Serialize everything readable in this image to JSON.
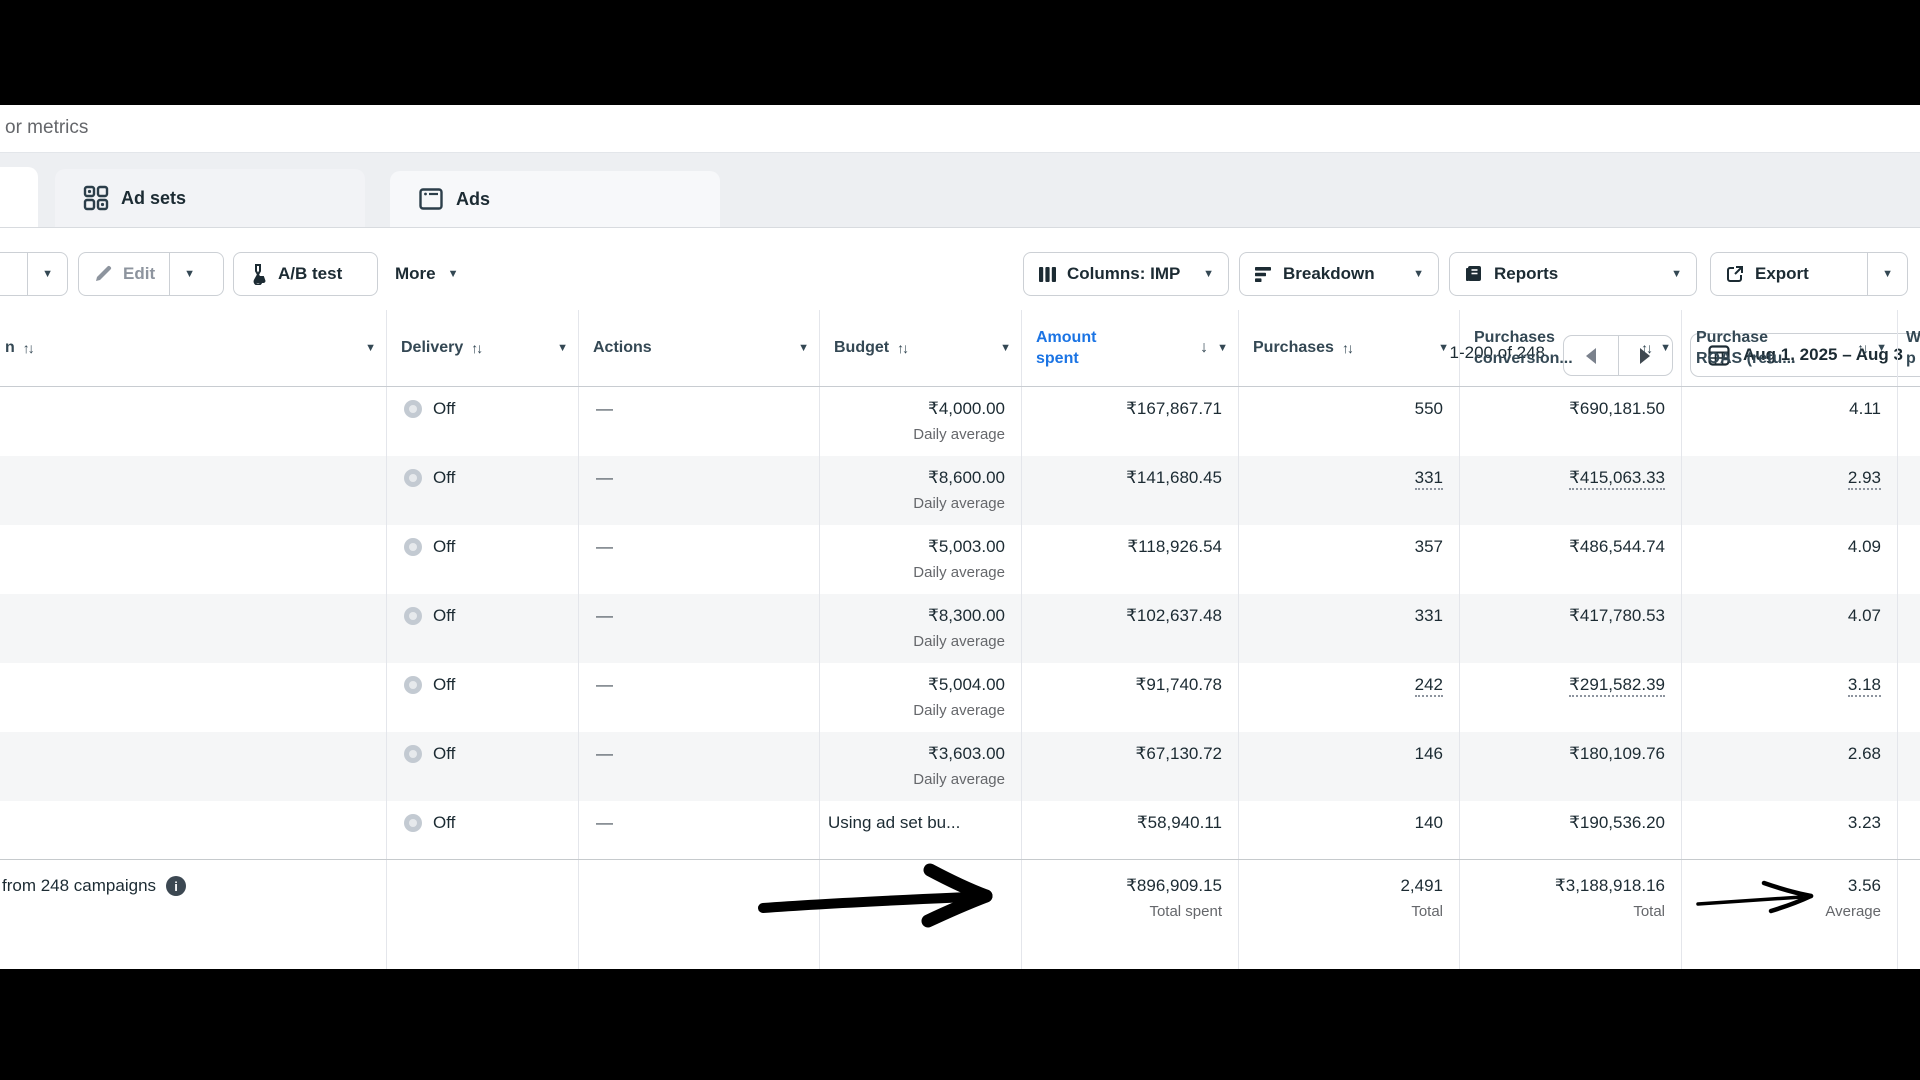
{
  "note": "or metrics",
  "tabs": {
    "adsets": "Ad sets",
    "ads": "Ads"
  },
  "pagination": {
    "range": "1-200 of 248"
  },
  "date_button": {
    "label": "Aug 1, 2025 – Aug 3"
  },
  "toolbar": {
    "edit": "Edit",
    "ab_test": "A/B test",
    "more": "More",
    "columns": "Columns: IMP",
    "breakdown": "Breakdown",
    "reports": "Reports",
    "export": "Export"
  },
  "icons": {
    "adsets_tab": "grid-icon",
    "ads_tab": "ad-frame-icon",
    "calendar": "calendar-icon",
    "edit": "pencil-icon",
    "ab_test": "flask-icon",
    "columns": "columns-icon",
    "breakdown": "breakdown-bars-icon",
    "reports": "report-book-icon",
    "export": "export-icon",
    "prev": "left-triangle-icon",
    "next": "right-triangle-icon",
    "info": "info-icon",
    "delivery_off": "toggle-off-icon",
    "sort": "up-down-arrows",
    "sorted_desc": "down-arrow",
    "dropdown": "chevron-down"
  },
  "glyphs": {
    "sort": "↑↓",
    "sorted_desc": "↓",
    "chevron": "▼",
    "info": "i"
  },
  "colors": {
    "accent_blue": "#1b74e4",
    "text_dark": "#1c2b33",
    "header_text": "#344854",
    "text_secondary": "#65676b",
    "disabled_text": "#8d949e",
    "row_alt": "#f5f6f7",
    "band_bg": "#edeff2",
    "border": "#ccd0d5",
    "annotation": "#000000"
  },
  "table": {
    "header": {
      "campaign_partial": "n",
      "delivery": "Delivery",
      "actions": "Actions",
      "budget": "Budget",
      "amount_line1": "Amount",
      "amount_line2": "spent",
      "purchases": "Purchases",
      "conversion_line1": "Purchases",
      "conversion_line2": "conversion...",
      "roas_line1": "Purchase",
      "roas_line2": "ROAS (retu...",
      "next_partial_line1": "W",
      "next_partial_line2": "p"
    },
    "rows": [
      {
        "delivery": "Off",
        "actions": "—",
        "budget": "₹4,000.00",
        "budget_sub": "Daily average",
        "amount": "₹167,867.71",
        "purchases": "550",
        "conversion": "₹690,181.50",
        "roas": "4.11",
        "estimated": false
      },
      {
        "delivery": "Off",
        "actions": "—",
        "budget": "₹8,600.00",
        "budget_sub": "Daily average",
        "amount": "₹141,680.45",
        "purchases": "331",
        "conversion": "₹415,063.33",
        "roas": "2.93",
        "estimated": true
      },
      {
        "delivery": "Off",
        "actions": "—",
        "budget": "₹5,003.00",
        "budget_sub": "Daily average",
        "amount": "₹118,926.54",
        "purchases": "357",
        "conversion": "₹486,544.74",
        "roas": "4.09",
        "estimated": false
      },
      {
        "delivery": "Off",
        "actions": "—",
        "budget": "₹8,300.00",
        "budget_sub": "Daily average",
        "amount": "₹102,637.48",
        "purchases": "331",
        "conversion": "₹417,780.53",
        "roas": "4.07",
        "estimated": false
      },
      {
        "delivery": "Off",
        "actions": "—",
        "budget": "₹5,004.00",
        "budget_sub": "Daily average",
        "amount": "₹91,740.78",
        "purchases": "242",
        "conversion": "₹291,582.39",
        "roas": "3.18",
        "estimated": true
      },
      {
        "delivery": "Off",
        "actions": "—",
        "budget": "₹3,603.00",
        "budget_sub": "Daily average",
        "amount": "₹67,130.72",
        "purchases": "146",
        "conversion": "₹180,109.76",
        "roas": "2.68",
        "estimated": false
      },
      {
        "delivery": "Off",
        "actions": "—",
        "budget": "Using ad set bu...",
        "budget_sub": "",
        "budget_align": "left",
        "amount": "₹58,940.11",
        "purchases": "140",
        "conversion": "₹190,536.20",
        "roas": "3.23",
        "estimated": false
      }
    ],
    "totals": {
      "label": "from 248 campaigns",
      "amount": "₹896,909.15",
      "amount_sub": "Total spent",
      "purchases": "2,491",
      "purchases_sub": "Total",
      "conversion": "₹3,188,918.16",
      "conversion_sub": "Total",
      "roas": "3.56",
      "roas_sub": "Average"
    }
  }
}
